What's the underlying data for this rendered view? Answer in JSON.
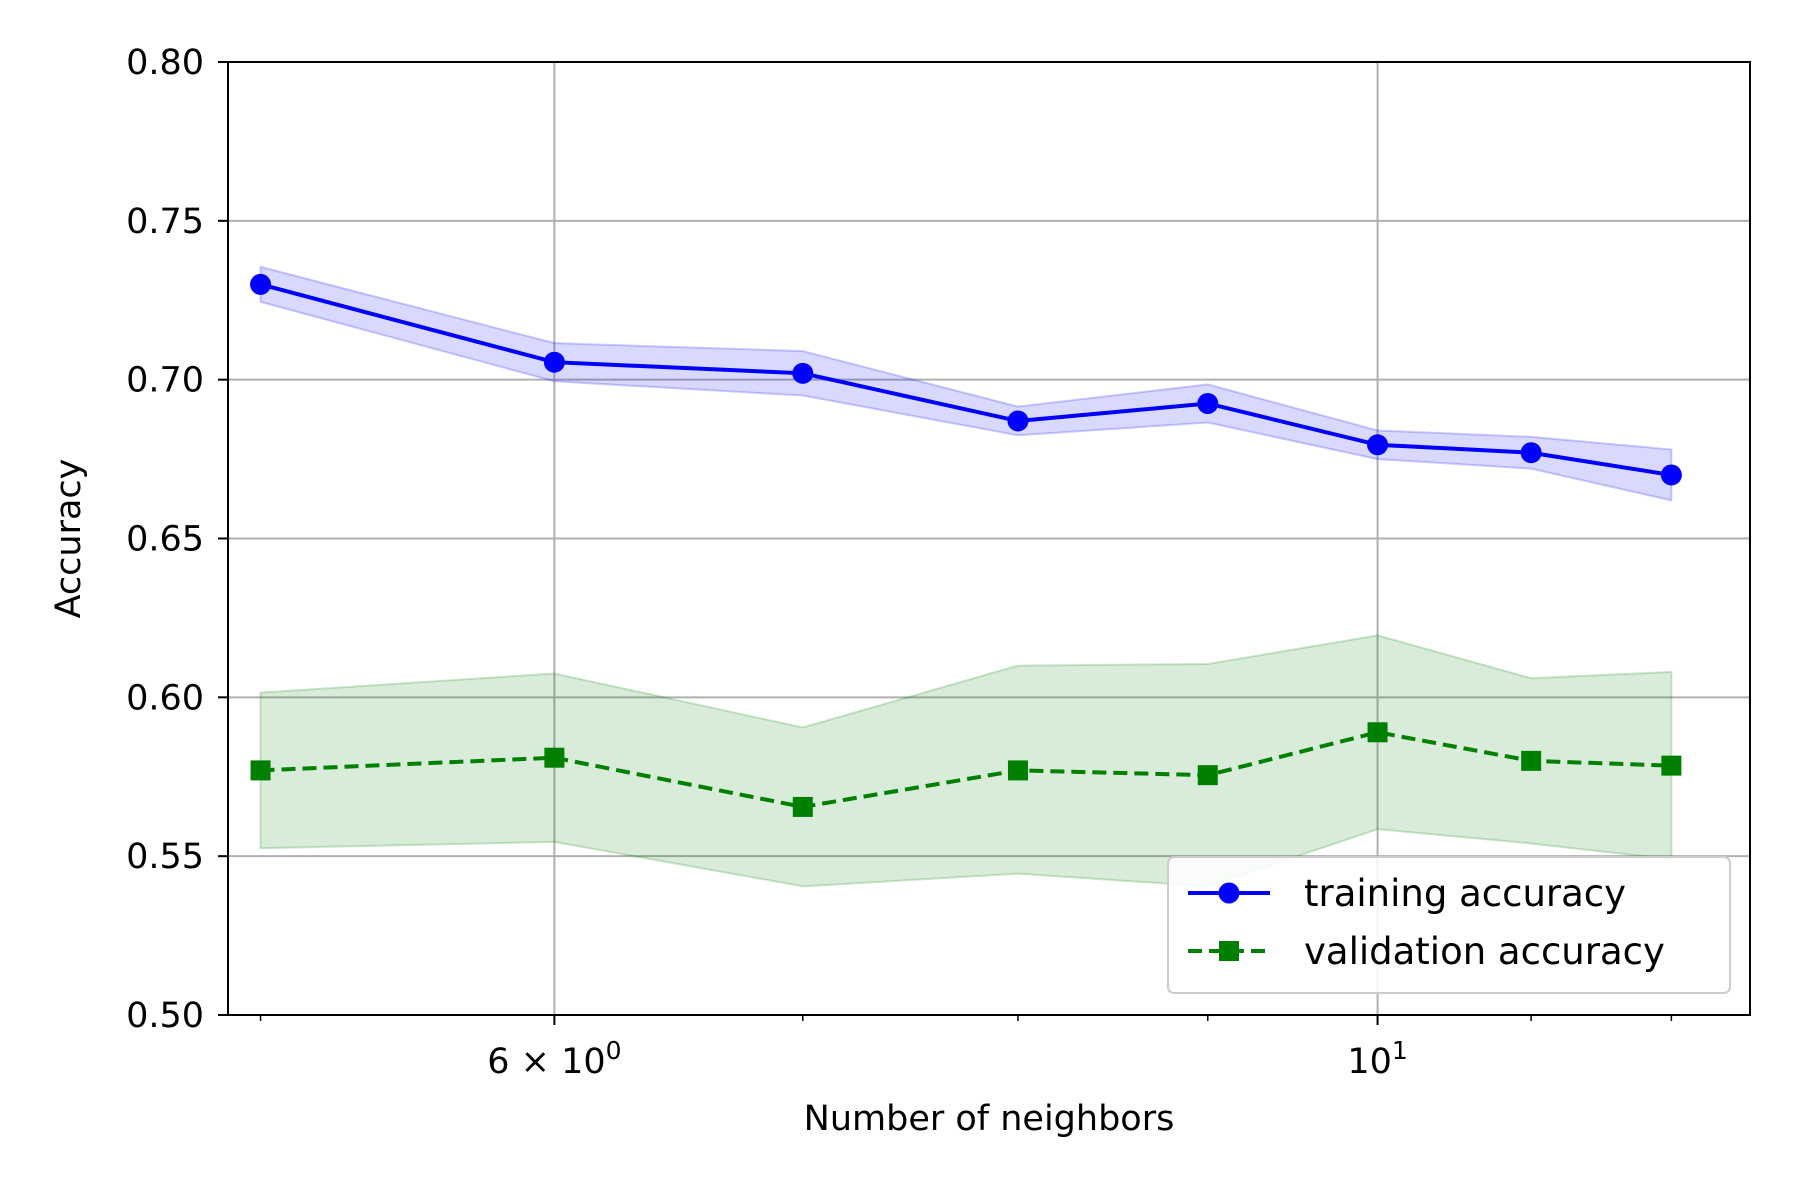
{
  "chart_data": {
    "type": "line",
    "xlabel": "Number of neighbors",
    "ylabel": "Accuracy",
    "x_scale": "log",
    "xlim": [
      4.9,
      12.6
    ],
    "ylim": [
      0.5,
      0.8
    ],
    "x": [
      5,
      6,
      7,
      8,
      9,
      10,
      11,
      12
    ],
    "x_major_ticks": [
      {
        "value": 6,
        "label": "6 × 10",
        "exp": "0"
      },
      {
        "value": 10,
        "label": "10",
        "exp": "1"
      }
    ],
    "x_minor_ticks": [
      5,
      7,
      8,
      9,
      11,
      12
    ],
    "y_ticks": [
      {
        "value": 0.5,
        "label": "0.50"
      },
      {
        "value": 0.55,
        "label": "0.55"
      },
      {
        "value": 0.6,
        "label": "0.60"
      },
      {
        "value": 0.65,
        "label": "0.65"
      },
      {
        "value": 0.7,
        "label": "0.70"
      },
      {
        "value": 0.75,
        "label": "0.75"
      },
      {
        "value": 0.8,
        "label": "0.80"
      }
    ],
    "grid": true,
    "legend_position": "lower-right",
    "series": [
      {
        "name": "training accuracy",
        "color": "#0000ff",
        "marker": "circle",
        "linestyle": "solid",
        "values": [
          0.73,
          0.7055,
          0.702,
          0.687,
          0.6925,
          0.6795,
          0.677,
          0.67
        ],
        "band_upper": [
          0.7355,
          0.7115,
          0.709,
          0.6915,
          0.6985,
          0.684,
          0.682,
          0.678
        ],
        "band_lower": [
          0.7245,
          0.6995,
          0.695,
          0.6825,
          0.6865,
          0.675,
          0.672,
          0.662
        ]
      },
      {
        "name": "validation accuracy",
        "color": "#008000",
        "marker": "square",
        "linestyle": "dashed",
        "values": [
          0.577,
          0.581,
          0.5655,
          0.577,
          0.5755,
          0.589,
          0.58,
          0.5785
        ],
        "band_upper": [
          0.6015,
          0.6075,
          0.5905,
          0.61,
          0.6105,
          0.6195,
          0.606,
          0.608
        ],
        "band_lower": [
          0.5525,
          0.5545,
          0.5405,
          0.5445,
          0.5405,
          0.5585,
          0.554,
          0.549
        ]
      }
    ]
  }
}
